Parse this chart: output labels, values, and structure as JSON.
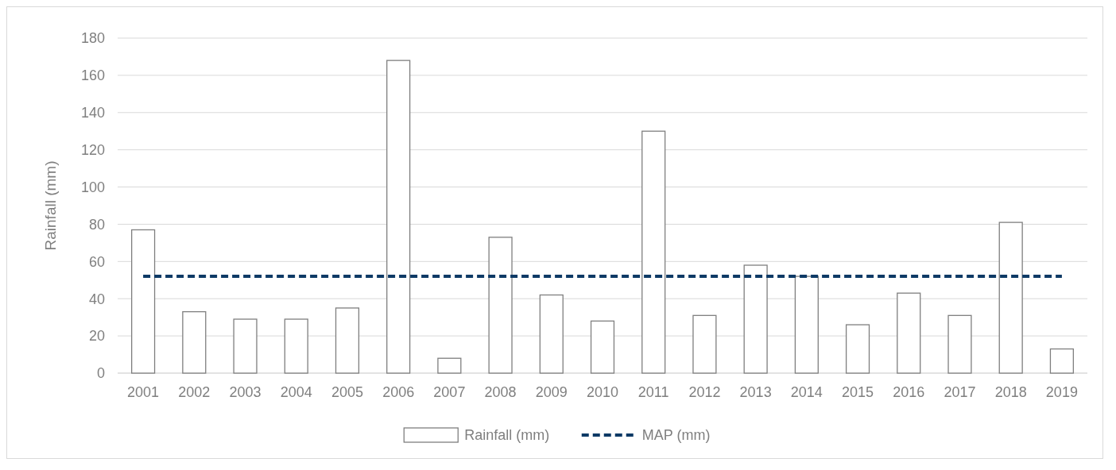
{
  "chart_data": {
    "type": "bar",
    "ylabel": "Rainfall (mm)",
    "categories": [
      "2001",
      "2002",
      "2003",
      "2004",
      "2005",
      "2006",
      "2007",
      "2008",
      "2009",
      "2010",
      "2011",
      "2012",
      "2013",
      "2014",
      "2015",
      "2016",
      "2017",
      "2018",
      "2019"
    ],
    "series": [
      {
        "name": "Rainfall (mm)",
        "color": "#ffffff",
        "values": [
          77,
          33,
          29,
          29,
          35,
          168,
          8,
          73,
          42,
          28,
          130,
          31,
          58,
          52,
          26,
          43,
          31,
          81,
          13
        ]
      },
      {
        "name": "MAP (mm)",
        "type": "line",
        "color": "#0e3a66",
        "line_style": "dashed",
        "values": [
          52,
          52,
          52,
          52,
          52,
          52,
          52,
          52,
          52,
          52,
          52,
          52,
          52,
          52,
          52,
          52,
          52,
          52,
          52
        ]
      }
    ],
    "ylim": [
      0,
      180
    ],
    "yticks": [
      0,
      20,
      40,
      60,
      80,
      100,
      120,
      140,
      160,
      180
    ],
    "grid": "y",
    "legend": "bottom"
  }
}
